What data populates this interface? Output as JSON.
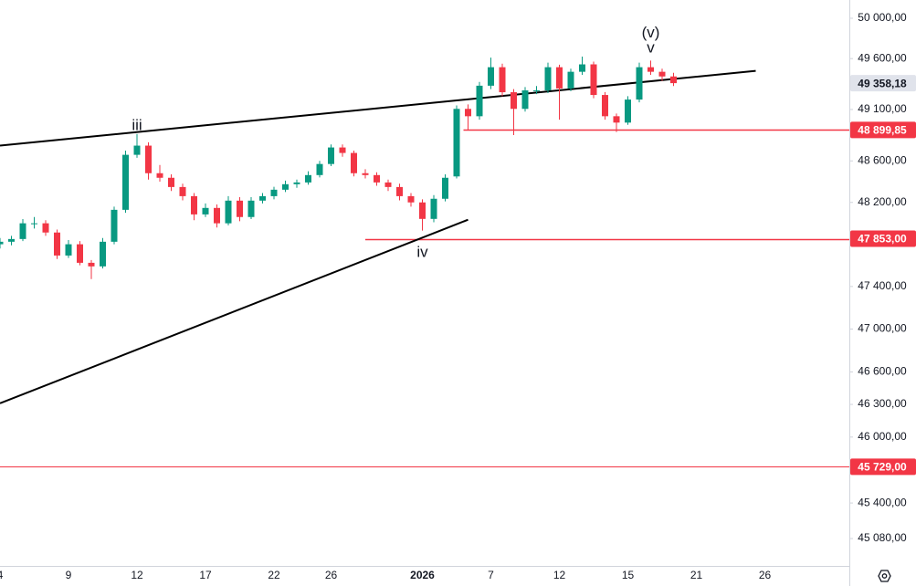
{
  "chart_data": {
    "type": "candlestick",
    "log": true,
    "categories": [
      "4",
      null,
      null,
      null,
      null,
      null,
      "9",
      null,
      null,
      null,
      null,
      null,
      "12",
      null,
      null,
      null,
      null,
      null,
      "17",
      null,
      null,
      null,
      null,
      null,
      "22",
      null,
      null,
      null,
      null,
      "26",
      null,
      null,
      null,
      null,
      null,
      null,
      null,
      "2026",
      null,
      null,
      null,
      null,
      null,
      "7",
      null,
      null,
      null,
      null,
      null,
      "12",
      null,
      null,
      null,
      null,
      null,
      "15",
      null,
      null,
      null,
      null,
      null,
      "21",
      null,
      null,
      null,
      null,
      null,
      "26",
      null,
      null,
      null,
      null,
      null,
      null,
      null
    ],
    "open": [
      47800,
      47824,
      47850,
      48000,
      48000,
      47912,
      47693,
      47800,
      47624,
      47590,
      47824,
      48129,
      48659,
      48748,
      48481,
      48437,
      48348,
      48260,
      48085,
      48147,
      48000,
      48217,
      48060,
      48217,
      48260,
      48322,
      48375,
      48392,
      48463,
      48570,
      48730,
      48677,
      48481,
      48463,
      48392,
      48348,
      48260,
      48200,
      48042,
      48235,
      48450,
      49106,
      49034,
      49333,
      49515,
      49269,
      49106,
      49287,
      49287,
      49515,
      49306,
      49470,
      49543,
      49242,
      49034,
      48972,
      49197,
      49515,
      49470,
      49424,
      null,
      null,
      null,
      null,
      null,
      null,
      null,
      null,
      null,
      null,
      null,
      null,
      null,
      null,
      null
    ],
    "high": [
      47860,
      47880,
      48040,
      48060,
      48030,
      47940,
      47840,
      47830,
      47650,
      47860,
      48160,
      48700,
      48860,
      48780,
      48560,
      48470,
      48380,
      48290,
      48190,
      48180,
      48260,
      48250,
      48250,
      48290,
      48350,
      48410,
      48420,
      48500,
      48600,
      48760,
      48760,
      48700,
      48520,
      48490,
      48420,
      48380,
      48290,
      48230,
      48270,
      48470,
      49140,
      49150,
      49370,
      49610,
      49550,
      49300,
      49320,
      49330,
      49560,
      49540,
      49500,
      49620,
      49570,
      49270,
      49060,
      49230,
      49560,
      49580,
      49500,
      49460,
      null,
      null,
      null,
      null,
      null,
      null,
      null,
      null,
      null,
      null,
      null,
      null,
      null,
      null,
      null
    ],
    "low": [
      47760,
      47790,
      47830,
      47950,
      47880,
      47660,
      47670,
      47600,
      47470,
      47570,
      47800,
      48100,
      48630,
      48420,
      48400,
      48310,
      48220,
      48030,
      48060,
      47960,
      47980,
      48020,
      48040,
      48190,
      48230,
      48300,
      48340,
      48370,
      48440,
      48550,
      48640,
      48450,
      48430,
      48360,
      48310,
      48220,
      48160,
      47930,
      48010,
      48210,
      48430,
      48900,
      49000,
      49300,
      49230,
      48850,
      49080,
      49250,
      49260,
      49000,
      49280,
      49440,
      49210,
      49000,
      48880,
      48950,
      49170,
      49440,
      49380,
      49330,
      null,
      null,
      null,
      null,
      null,
      null,
      null,
      null,
      null,
      null,
      null,
      null,
      null,
      null,
      null
    ],
    "close": [
      47824,
      47850,
      48000,
      48000,
      47912,
      47693,
      47800,
      47624,
      47590,
      47824,
      48129,
      48659,
      48748,
      48481,
      48437,
      48348,
      48260,
      48085,
      48147,
      48000,
      48217,
      48060,
      48217,
      48260,
      48322,
      48375,
      48392,
      48463,
      48570,
      48730,
      48677,
      48481,
      48463,
      48392,
      48348,
      48260,
      48200,
      48042,
      48235,
      48437,
      49106,
      49034,
      49333,
      49515,
      49269,
      49106,
      49287,
      49287,
      49515,
      49306,
      49470,
      49543,
      49242,
      49034,
      48972,
      49197,
      49515,
      49470,
      49424,
      49358.18,
      null,
      null,
      null,
      null,
      null,
      null,
      null,
      null,
      null,
      null,
      null,
      null,
      null,
      null,
      null
    ],
    "up_color": "#089981",
    "down_color": "#f23645",
    "ylim": [
      44835,
      50182
    ],
    "yticks": [
      {
        "value": 50000,
        "label": "50 000,00"
      },
      {
        "value": 49600,
        "label": "49 600,00"
      },
      {
        "value": 49100,
        "label": "49 100,00"
      },
      {
        "value": 48600,
        "label": "48 600,00"
      },
      {
        "value": 48200,
        "label": "48 200,00"
      },
      {
        "value": 47400,
        "label": "47 400,00"
      },
      {
        "value": 47000,
        "label": "47 000,00"
      },
      {
        "value": 46600,
        "label": "46 600,00"
      },
      {
        "value": 46300,
        "label": "46 300,00"
      },
      {
        "value": 46000,
        "label": "46 000,00"
      },
      {
        "value": 45400,
        "label": "45 400,00"
      },
      {
        "value": 45080,
        "label": "45 080,00"
      }
    ],
    "last_price": {
      "value": 49358.18,
      "label": "49 358,18"
    },
    "price_lines": [
      {
        "value": 48899.85,
        "label": "48 899,85",
        "from": 40.6,
        "color": "#f23645"
      },
      {
        "value": 47853,
        "label": "47 853,00",
        "from": 32,
        "color": "#f23645"
      },
      {
        "value": 45729,
        "label": "45 729,00",
        "from": 0,
        "color": "#f23645"
      }
    ],
    "trendlines": [
      {
        "x": [
          0,
          66.2
        ],
        "y": [
          48748,
          49479
        ],
        "color": "#000000"
      },
      {
        "x": [
          0,
          41
        ],
        "y": [
          46310,
          48034
        ],
        "color": "#000000"
      }
    ],
    "annotations": [
      {
        "text": "iii",
        "x": 12,
        "y": 48940
      },
      {
        "text": "iv",
        "x": 37,
        "y": 47720
      },
      {
        "text": "v",
        "x": 57,
        "y": 49700
      },
      {
        "text": "(v)",
        "x": 57,
        "y": 49850
      }
    ]
  }
}
